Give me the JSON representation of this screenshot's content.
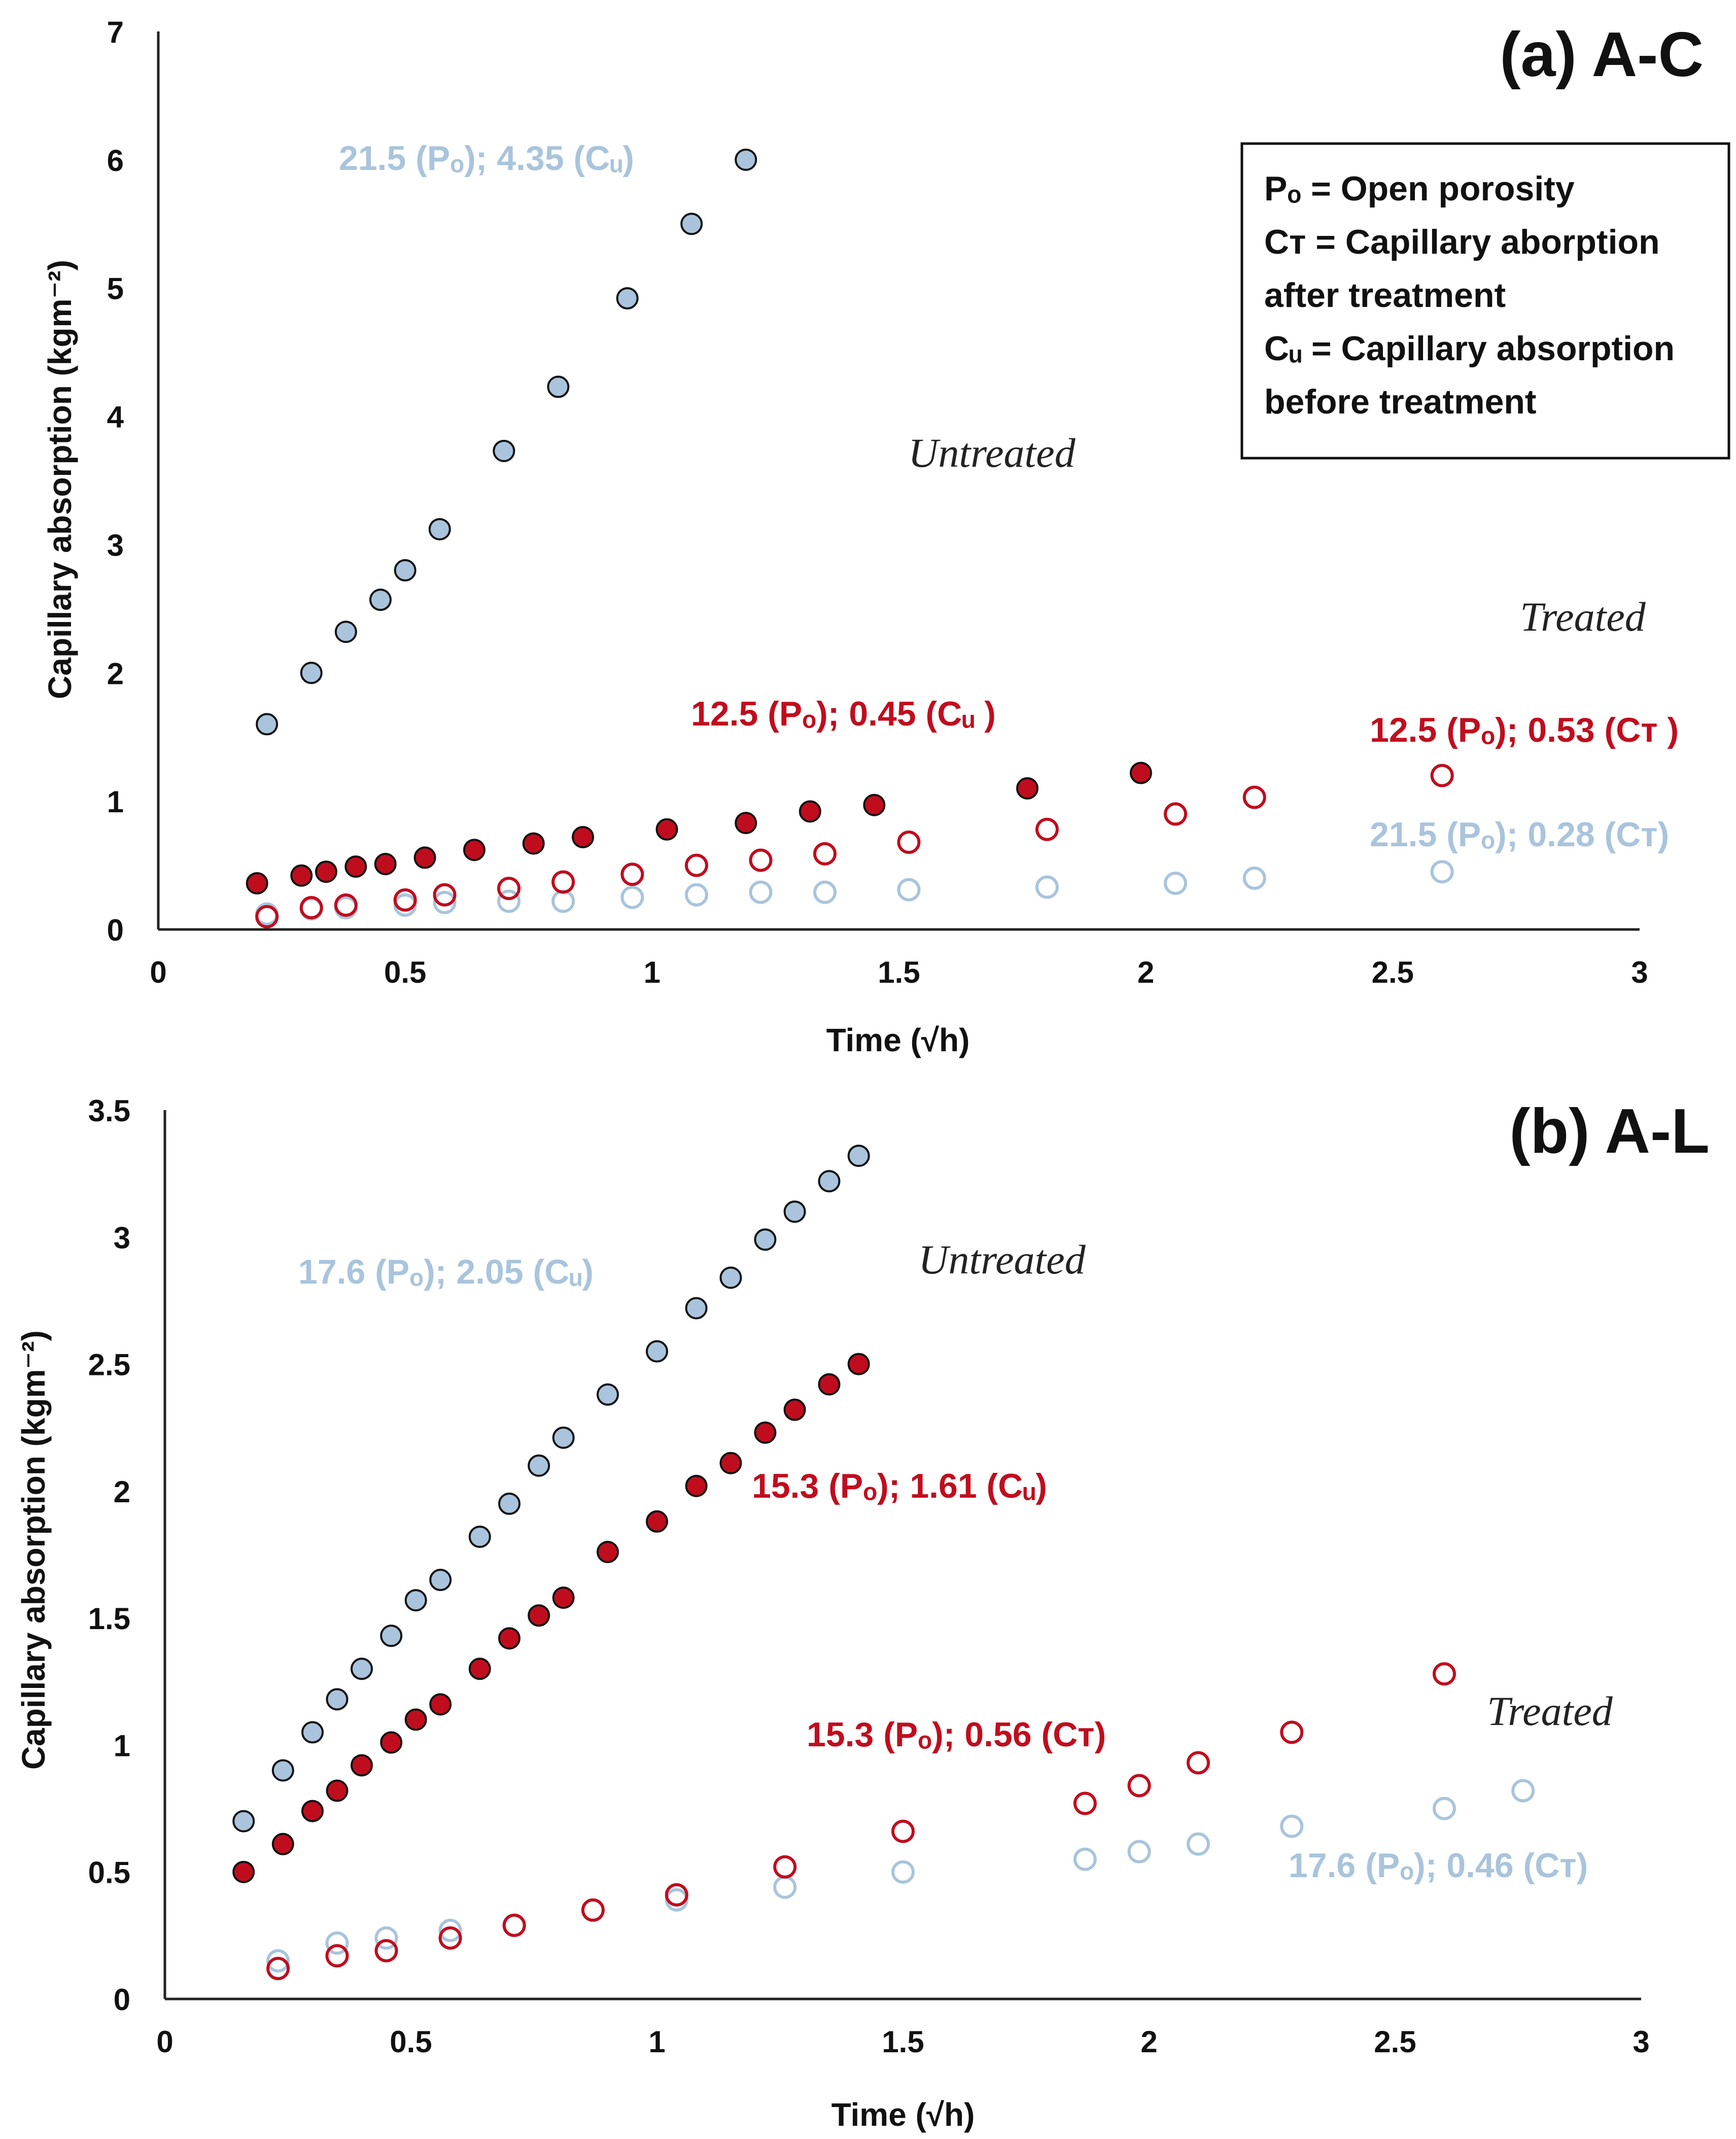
{
  "colors": {
    "light_blue": "#a9c4dc",
    "red": "#c00d1e",
    "dark_outline": "#111111",
    "axis": "#222222"
  },
  "chart_data": [
    {
      "type": "scatter",
      "panel_label": "(a) A-C",
      "xlabel": "Time (√h)",
      "ylabel": "Capillary absorption (kgm⁻²)",
      "xlim": [
        0,
        3
      ],
      "ylim": [
        0,
        7
      ],
      "xticks": [
        "0",
        "0.5",
        "1",
        "1.5",
        "2",
        "2.5",
        "3"
      ],
      "yticks": [
        "0",
        "1",
        "2",
        "3",
        "4",
        "5",
        "6",
        "7"
      ],
      "legend_box": [
        "Pₒ = Open  porosity",
        "Cᴛ = Capillary aborption",
        "after treatment",
        "Cᵤ = Capillary absorption",
        "before treatment"
      ],
      "text_labels": {
        "untreated": "Untreated",
        "treated": "Treated",
        "blue_untreated": "21.5 (Pₒ); 4.35 (Cᵤ)",
        "red_untreated": "12.5 (Pₒ); 0.45 (Cᵤ )",
        "red_treated": "12.5 (Pₒ); 0.53 (Cᴛ )",
        "blue_treated": "21.5 (Pₒ); 0.28 (Cᴛ)"
      },
      "series": [
        {
          "marker": "filled-blue",
          "x": [
            0.22,
            0.31,
            0.38,
            0.45,
            0.5,
            0.57,
            0.7,
            0.81,
            0.95,
            1.08,
            1.19
          ],
          "y": [
            1.6,
            2.0,
            2.32,
            2.57,
            2.8,
            3.12,
            3.73,
            4.23,
            4.92,
            5.5,
            6.0
          ]
        },
        {
          "marker": "filled-red",
          "x": [
            0.2,
            0.29,
            0.34,
            0.4,
            0.46,
            0.54,
            0.64,
            0.76,
            0.86,
            1.03,
            1.19,
            1.32,
            1.45,
            1.76,
            1.99
          ],
          "y": [
            0.36,
            0.42,
            0.45,
            0.49,
            0.51,
            0.56,
            0.62,
            0.67,
            0.72,
            0.78,
            0.83,
            0.92,
            0.97,
            1.1,
            1.22
          ]
        },
        {
          "marker": "open-red",
          "x": [
            0.22,
            0.31,
            0.38,
            0.5,
            0.58,
            0.71,
            0.82,
            0.96,
            1.09,
            1.22,
            1.35,
            1.52,
            1.8,
            2.06,
            2.22,
            2.6
          ],
          "y": [
            0.1,
            0.17,
            0.19,
            0.23,
            0.27,
            0.32,
            0.37,
            0.43,
            0.5,
            0.54,
            0.59,
            0.68,
            0.78,
            0.9,
            1.03,
            1.2
          ]
        },
        {
          "marker": "open-blue",
          "x": [
            0.22,
            0.31,
            0.38,
            0.5,
            0.58,
            0.71,
            0.82,
            0.96,
            1.09,
            1.22,
            1.35,
            1.52,
            1.8,
            2.06,
            2.22,
            2.6
          ],
          "y": [
            0.12,
            0.16,
            0.17,
            0.19,
            0.21,
            0.22,
            0.22,
            0.25,
            0.27,
            0.29,
            0.29,
            0.31,
            0.33,
            0.36,
            0.4,
            0.45
          ]
        }
      ]
    },
    {
      "type": "scatter",
      "panel_label": "(b) A-L",
      "xlabel": "Time (√h)",
      "ylabel": "Capillary absorption (kgm⁻²)",
      "xlim": [
        0,
        3
      ],
      "ylim": [
        0,
        3.5
      ],
      "xticks": [
        "0",
        "0.5",
        "1",
        "1.5",
        "2",
        "2.5",
        "3"
      ],
      "yticks": [
        "0",
        "0.5",
        "1",
        "1.5",
        "2",
        "2.5",
        "3",
        "3.5"
      ],
      "text_labels": {
        "untreated": "Untreated",
        "treated": "Treated",
        "blue_untreated": "17.6 (Pₒ); 2.05 (Cᵤ)",
        "red_untreated": "15.3 (Pₒ); 1.61 (Cᵤ)",
        "red_treated": "15.3 (Pₒ); 0.56 (Cᴛ)",
        "blue_treated": "17.6 (Pₒ); 0.46 (Cᴛ)"
      },
      "series": [
        {
          "marker": "filled-blue",
          "x": [
            0.16,
            0.24,
            0.3,
            0.35,
            0.4,
            0.46,
            0.51,
            0.56,
            0.64,
            0.7,
            0.76,
            0.81,
            0.9,
            1.0,
            1.08,
            1.15,
            1.22,
            1.28,
            1.35,
            1.41
          ],
          "y": [
            0.7,
            0.9,
            1.05,
            1.18,
            1.3,
            1.43,
            1.57,
            1.65,
            1.82,
            1.95,
            2.1,
            2.21,
            2.38,
            2.55,
            2.72,
            2.84,
            2.99,
            3.1,
            3.22,
            3.32
          ]
        },
        {
          "marker": "filled-red",
          "x": [
            0.16,
            0.24,
            0.3,
            0.35,
            0.4,
            0.46,
            0.51,
            0.56,
            0.64,
            0.7,
            0.76,
            0.81,
            0.9,
            1.0,
            1.08,
            1.15,
            1.22,
            1.28,
            1.35,
            1.41
          ],
          "y": [
            0.5,
            0.61,
            0.74,
            0.82,
            0.92,
            1.01,
            1.1,
            1.16,
            1.3,
            1.42,
            1.51,
            1.58,
            1.76,
            1.88,
            2.02,
            2.11,
            2.23,
            2.32,
            2.42,
            2.5
          ]
        },
        {
          "marker": "open-red",
          "x": [
            0.23,
            0.35,
            0.45,
            0.58,
            0.71,
            0.87,
            1.04,
            1.26,
            1.5,
            1.87,
            1.98,
            2.1,
            2.29,
            2.6
          ],
          "y": [
            0.12,
            0.17,
            0.19,
            0.24,
            0.29,
            0.35,
            0.41,
            0.52,
            0.66,
            0.77,
            0.84,
            0.93,
            1.05,
            1.28
          ]
        },
        {
          "marker": "open-blue",
          "x": [
            0.23,
            0.35,
            0.45,
            0.58,
            0.71,
            1.04,
            1.26,
            1.5,
            1.87,
            1.98,
            2.1,
            2.29,
            2.6,
            2.76
          ],
          "y": [
            0.15,
            0.22,
            0.24,
            0.27,
            0.29,
            0.39,
            0.44,
            0.5,
            0.55,
            0.58,
            0.61,
            0.68,
            0.75,
            0.82
          ]
        }
      ]
    }
  ]
}
